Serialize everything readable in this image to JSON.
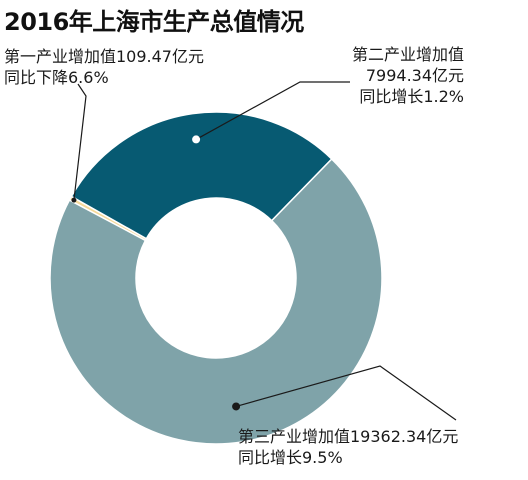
{
  "title": "2016年上海市生产总值情况",
  "chart_data": {
    "type": "pie",
    "donut": true,
    "title": "2016年上海市生产总值情况",
    "unit": "亿元",
    "start_angle_deg": -152,
    "slices": [
      {
        "key": "primary",
        "name": "第一产业增加值",
        "value": 109.47,
        "value_text": "109.47亿元",
        "growth_text": "同比下降6.6%",
        "color": "#F5D99A"
      },
      {
        "key": "secondary",
        "name": "第二产业增加值",
        "value": 7994.34,
        "value_text": "7994.34亿元",
        "growth_text": "同比增长1.2%",
        "color": "#075A72"
      },
      {
        "key": "tertiary",
        "name": "第三产业增加值",
        "value": 19362.34,
        "value_text": "19362.34亿元",
        "growth_text": "同比增长9.5%",
        "color": "#7FA3A9"
      }
    ]
  },
  "labels": {
    "primary_line1": "第一产业增加值109.47亿元",
    "primary_line2": "同比下降6.6%",
    "secondary_line1": "第二产业增加值",
    "secondary_line2": "7994.34亿元",
    "secondary_line3": "同比增长1.2%",
    "tertiary_line1": "第三产业增加值19362.34亿元",
    "tertiary_line2": "同比增长9.5%"
  }
}
